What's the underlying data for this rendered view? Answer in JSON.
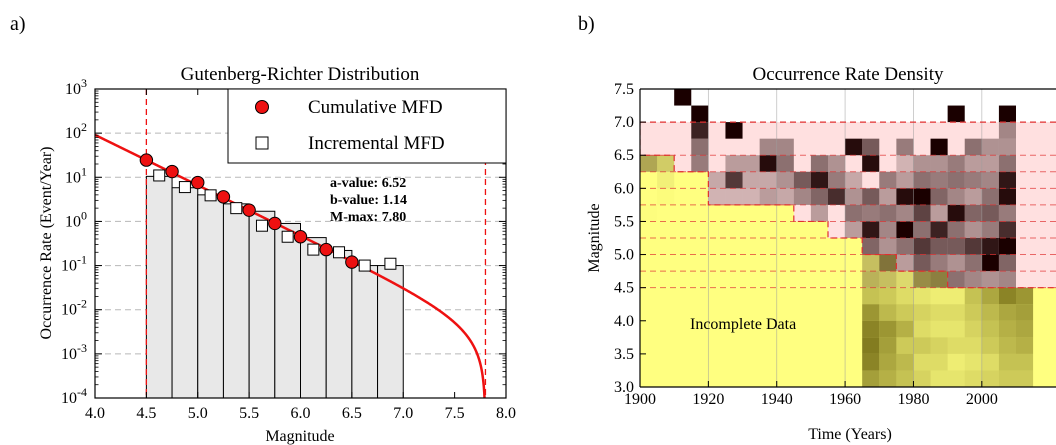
{
  "panels": {
    "a_label": "a)",
    "b_label": "b)"
  },
  "chart_data": [
    {
      "type": "bar",
      "title": "Gutenberg-Richter Distribution",
      "xlabel": "Magnitude",
      "ylabel": "Occurrence Rate (Event/Year)",
      "xlim": [
        4.0,
        8.0
      ],
      "ylim_log10": [
        -4,
        3
      ],
      "y_scale": "log",
      "x_ticks": [
        "4.0",
        "4.5",
        "5.0",
        "5.5",
        "6.0",
        "6.5",
        "7.0",
        "7.5",
        "8.0"
      ],
      "y_tick_exponents": [
        "3",
        "2",
        "1",
        "0",
        "-1",
        "-2",
        "-3",
        "-4"
      ],
      "grid": "horizontal dashed",
      "legend_position": "top-right",
      "bars": {
        "left_edges": [
          4.5,
          4.75,
          5.0,
          5.25,
          5.5,
          5.75,
          6.0,
          6.25,
          6.5,
          6.75
        ],
        "width": 0.25,
        "heights": [
          10.5,
          5.8,
          4.0,
          2.5,
          1.7,
          0.9,
          0.43,
          0.22,
          0.1,
          0.1
        ]
      },
      "series": [
        {
          "name": "Cumulative MFD",
          "marker": "red-circle",
          "x": [
            4.5,
            4.75,
            5.0,
            5.25,
            5.5,
            5.75,
            6.0,
            6.25,
            6.5
          ],
          "y": [
            24.5,
            13.5,
            7.6,
            3.6,
            1.8,
            0.9,
            0.45,
            0.23,
            0.12
          ]
        },
        {
          "name": "Incremental MFD",
          "marker": "white-square",
          "x": [
            4.625,
            4.875,
            5.125,
            5.375,
            5.625,
            5.875,
            6.125,
            6.375,
            6.625,
            6.875
          ],
          "y": [
            11.0,
            6.0,
            3.9,
            2.0,
            0.8,
            0.45,
            0.23,
            0.2,
            0.1,
            0.11
          ]
        }
      ],
      "fit_curve": {
        "a_value": 6.52,
        "b_value": 1.14,
        "m_max": 7.8,
        "color": "#ee1111"
      },
      "vertical_lines": [
        4.5,
        7.8
      ],
      "annotations": [
        "a-value: 6.52",
        "b-value: 1.14",
        "M-max: 7.80"
      ]
    },
    {
      "type": "heatmap",
      "title": "Occurrence Rate Density",
      "xlabel": "Time (Years)",
      "ylabel": "Magnitude",
      "xlim": [
        1900,
        2015
      ],
      "ylim": [
        3.0,
        7.5
      ],
      "x_ticks": [
        "1900",
        "1920",
        "1940",
        "1960",
        "1980",
        "2000"
      ],
      "y_ticks": [
        "3.0",
        "3.5",
        "4.0",
        "4.5",
        "5.0",
        "5.5",
        "6.0",
        "6.5",
        "7.0",
        "7.5"
      ],
      "annotation": "Incomplete Data",
      "grid": "vertical lines",
      "x_bin_start": 1900,
      "x_bin_width": 5,
      "y_bin_start": 3.0,
      "y_bin_width": 0.25,
      "completeness_edges_mag": [
        4.5,
        4.75,
        5.0,
        5.25,
        5.5,
        5.75,
        6.0,
        6.25,
        6.5,
        7.0
      ],
      "completeness_years": [
        1990,
        1975,
        1965,
        1955,
        1945,
        1920,
        1920,
        1910,
        1900,
        1900
      ],
      "incomplete_color": "#ffff80",
      "complete_color": "#ffe0e0",
      "cell_values_note": "values 0-1, darker = higher rate density",
      "cells": [
        {
          "year": 1965,
          "mag": 3.0,
          "v": 0.55
        },
        {
          "year": 1965,
          "mag": 3.25,
          "v": 0.7
        },
        {
          "year": 1965,
          "mag": 3.5,
          "v": 0.75
        },
        {
          "year": 1965,
          "mag": 3.75,
          "v": 0.7
        },
        {
          "year": 1965,
          "mag": 4.0,
          "v": 0.6
        },
        {
          "year": 1965,
          "mag": 4.25,
          "v": 0.35
        },
        {
          "year": 1965,
          "mag": 4.5,
          "v": 0.3
        },
        {
          "year": 1965,
          "mag": 4.75,
          "v": 0.25
        },
        {
          "year": 1970,
          "mag": 3.0,
          "v": 0.45
        },
        {
          "year": 1970,
          "mag": 3.25,
          "v": 0.5
        },
        {
          "year": 1970,
          "mag": 3.5,
          "v": 0.55
        },
        {
          "year": 1970,
          "mag": 3.75,
          "v": 0.6
        },
        {
          "year": 1970,
          "mag": 4.0,
          "v": 0.4
        },
        {
          "year": 1970,
          "mag": 4.25,
          "v": 0.3
        },
        {
          "year": 1970,
          "mag": 4.5,
          "v": 0.25
        },
        {
          "year": 1975,
          "mag": 3.0,
          "v": 0.35
        },
        {
          "year": 1975,
          "mag": 3.25,
          "v": 0.4
        },
        {
          "year": 1975,
          "mag": 3.5,
          "v": 0.3
        },
        {
          "year": 1975,
          "mag": 3.75,
          "v": 0.45
        },
        {
          "year": 1975,
          "mag": 4.0,
          "v": 0.3
        },
        {
          "year": 1975,
          "mag": 4.25,
          "v": 0.2
        },
        {
          "year": 1975,
          "mag": 4.5,
          "v": 0.15
        },
        {
          "year": 1980,
          "mag": 3.0,
          "v": 0.25
        },
        {
          "year": 1980,
          "mag": 3.25,
          "v": 0.2
        },
        {
          "year": 1980,
          "mag": 3.5,
          "v": 0.3
        },
        {
          "year": 1980,
          "mag": 3.75,
          "v": 0.2
        },
        {
          "year": 1980,
          "mag": 4.0,
          "v": 0.25
        },
        {
          "year": 1980,
          "mag": 4.25,
          "v": 0.15
        },
        {
          "year": 1985,
          "mag": 3.0,
          "v": 0.15
        },
        {
          "year": 1985,
          "mag": 3.25,
          "v": 0.2
        },
        {
          "year": 1985,
          "mag": 3.5,
          "v": 0.25
        },
        {
          "year": 1985,
          "mag": 3.75,
          "v": 0.15
        },
        {
          "year": 1985,
          "mag": 4.0,
          "v": 0.2
        },
        {
          "year": 1985,
          "mag": 4.25,
          "v": 0.1
        },
        {
          "year": 1990,
          "mag": 3.0,
          "v": 0.15
        },
        {
          "year": 1990,
          "mag": 3.25,
          "v": 0.1
        },
        {
          "year": 1990,
          "mag": 3.5,
          "v": 0.2
        },
        {
          "year": 1990,
          "mag": 3.75,
          "v": 0.15
        },
        {
          "year": 1990,
          "mag": 4.0,
          "v": 0.2
        },
        {
          "year": 1990,
          "mag": 4.25,
          "v": 0.1
        },
        {
          "year": 1995,
          "mag": 3.0,
          "v": 0.2
        },
        {
          "year": 1995,
          "mag": 3.25,
          "v": 0.15
        },
        {
          "year": 1995,
          "mag": 3.5,
          "v": 0.2
        },
        {
          "year": 1995,
          "mag": 3.75,
          "v": 0.25
        },
        {
          "year": 1995,
          "mag": 4.0,
          "v": 0.3
        },
        {
          "year": 1995,
          "mag": 4.25,
          "v": 0.35
        },
        {
          "year": 2000,
          "mag": 3.0,
          "v": 0.25
        },
        {
          "year": 2000,
          "mag": 3.25,
          "v": 0.2
        },
        {
          "year": 2000,
          "mag": 3.5,
          "v": 0.3
        },
        {
          "year": 2000,
          "mag": 3.75,
          "v": 0.35
        },
        {
          "year": 2000,
          "mag": 4.0,
          "v": 0.4
        },
        {
          "year": 2000,
          "mag": 4.25,
          "v": 0.5
        },
        {
          "year": 2005,
          "mag": 3.0,
          "v": 0.3
        },
        {
          "year": 2005,
          "mag": 3.25,
          "v": 0.35
        },
        {
          "year": 2005,
          "mag": 3.5,
          "v": 0.4
        },
        {
          "year": 2005,
          "mag": 3.75,
          "v": 0.45
        },
        {
          "year": 2005,
          "mag": 4.0,
          "v": 0.5
        },
        {
          "year": 2005,
          "mag": 4.25,
          "v": 0.7
        },
        {
          "year": 2010,
          "mag": 3.0,
          "v": 0.3
        },
        {
          "year": 2010,
          "mag": 3.25,
          "v": 0.35
        },
        {
          "year": 2010,
          "mag": 3.5,
          "v": 0.45
        },
        {
          "year": 2010,
          "mag": 3.75,
          "v": 0.5
        },
        {
          "year": 2010,
          "mag": 4.0,
          "v": 0.55
        },
        {
          "year": 2010,
          "mag": 4.25,
          "v": 0.6
        },
        {
          "year": 1905,
          "mag": 6.0,
          "v": 0.06
        },
        {
          "year": 1905,
          "mag": 5.75,
          "v": 0.05
        },
        {
          "year": 1900,
          "mag": 5.5,
          "v": 0.03
        },
        {
          "year": 1965,
          "mag": 5.0,
          "v": 0.55
        },
        {
          "year": 1965,
          "mag": 5.25,
          "v": 0.9
        },
        {
          "year": 1965,
          "mag": 5.5,
          "v": 0.45
        },
        {
          "year": 1965,
          "mag": 5.75,
          "v": 0.6
        },
        {
          "year": 1965,
          "mag": 6.25,
          "v": 0.95
        },
        {
          "year": 1965,
          "mag": 6.5,
          "v": 0.6
        },
        {
          "year": 1970,
          "mag": 4.75,
          "v": 0.55
        },
        {
          "year": 1970,
          "mag": 5.0,
          "v": 0.35
        },
        {
          "year": 1970,
          "mag": 5.25,
          "v": 0.4
        },
        {
          "year": 1970,
          "mag": 5.5,
          "v": 0.5
        },
        {
          "year": 1970,
          "mag": 5.75,
          "v": 0.3
        },
        {
          "year": 1970,
          "mag": 6.0,
          "v": 0.45
        },
        {
          "year": 1975,
          "mag": 4.75,
          "v": 0.3
        },
        {
          "year": 1975,
          "mag": 5.0,
          "v": 0.5
        },
        {
          "year": 1975,
          "mag": 5.25,
          "v": 1.0
        },
        {
          "year": 1975,
          "mag": 5.5,
          "v": 0.4
        },
        {
          "year": 1975,
          "mag": 5.75,
          "v": 0.95
        },
        {
          "year": 1975,
          "mag": 6.0,
          "v": 0.3
        },
        {
          "year": 1975,
          "mag": 6.25,
          "v": 0.2
        },
        {
          "year": 1975,
          "mag": 6.5,
          "v": 0.45
        },
        {
          "year": 1980,
          "mag": 4.5,
          "v": 0.45
        },
        {
          "year": 1980,
          "mag": 4.75,
          "v": 0.6
        },
        {
          "year": 1980,
          "mag": 5.0,
          "v": 0.75
        },
        {
          "year": 1980,
          "mag": 5.25,
          "v": 0.5
        },
        {
          "year": 1980,
          "mag": 5.5,
          "v": 0.7
        },
        {
          "year": 1980,
          "mag": 5.75,
          "v": 1.0
        },
        {
          "year": 1980,
          "mag": 6.0,
          "v": 0.5
        },
        {
          "year": 1980,
          "mag": 6.25,
          "v": 0.35
        },
        {
          "year": 1985,
          "mag": 4.5,
          "v": 0.5
        },
        {
          "year": 1985,
          "mag": 4.75,
          "v": 0.45
        },
        {
          "year": 1985,
          "mag": 5.0,
          "v": 0.6
        },
        {
          "year": 1985,
          "mag": 5.25,
          "v": 0.85
        },
        {
          "year": 1985,
          "mag": 5.5,
          "v": 0.3
        },
        {
          "year": 1985,
          "mag": 5.75,
          "v": 0.55
        },
        {
          "year": 1985,
          "mag": 6.0,
          "v": 0.45
        },
        {
          "year": 1985,
          "mag": 6.25,
          "v": 0.35
        },
        {
          "year": 1985,
          "mag": 6.5,
          "v": 1.0
        },
        {
          "year": 1990,
          "mag": 4.5,
          "v": 0.5
        },
        {
          "year": 1990,
          "mag": 4.75,
          "v": 0.35
        },
        {
          "year": 1990,
          "mag": 5.0,
          "v": 0.6
        },
        {
          "year": 1990,
          "mag": 5.25,
          "v": 0.5
        },
        {
          "year": 1990,
          "mag": 5.5,
          "v": 0.95
        },
        {
          "year": 1990,
          "mag": 5.75,
          "v": 0.4
        },
        {
          "year": 1990,
          "mag": 6.0,
          "v": 0.5
        },
        {
          "year": 1990,
          "mag": 6.25,
          "v": 0.45
        },
        {
          "year": 1990,
          "mag": 7.0,
          "v": 1.0
        },
        {
          "year": 1995,
          "mag": 4.5,
          "v": 0.4
        },
        {
          "year": 1995,
          "mag": 4.75,
          "v": 0.5
        },
        {
          "year": 1995,
          "mag": 5.0,
          "v": 0.75
        },
        {
          "year": 1995,
          "mag": 5.25,
          "v": 0.35
        },
        {
          "year": 1995,
          "mag": 5.5,
          "v": 0.55
        },
        {
          "year": 1995,
          "mag": 5.75,
          "v": 0.3
        },
        {
          "year": 1995,
          "mag": 6.0,
          "v": 0.45
        },
        {
          "year": 1995,
          "mag": 6.25,
          "v": 0.3
        },
        {
          "year": 1995,
          "mag": 6.5,
          "v": 0.5
        },
        {
          "year": 2000,
          "mag": 4.5,
          "v": 0.35
        },
        {
          "year": 2000,
          "mag": 4.75,
          "v": 1.0
        },
        {
          "year": 2000,
          "mag": 5.0,
          "v": 0.9
        },
        {
          "year": 2000,
          "mag": 5.25,
          "v": 0.45
        },
        {
          "year": 2000,
          "mag": 5.5,
          "v": 0.6
        },
        {
          "year": 2000,
          "mag": 5.75,
          "v": 0.5
        },
        {
          "year": 2000,
          "mag": 6.0,
          "v": 0.4
        },
        {
          "year": 2000,
          "mag": 6.25,
          "v": 0.3
        },
        {
          "year": 2000,
          "mag": 6.5,
          "v": 0.35
        },
        {
          "year": 2005,
          "mag": 4.5,
          "v": 0.4
        },
        {
          "year": 2005,
          "mag": 4.75,
          "v": 0.55
        },
        {
          "year": 2005,
          "mag": 5.0,
          "v": 1.0
        },
        {
          "year": 2005,
          "mag": 5.25,
          "v": 0.8
        },
        {
          "year": 2005,
          "mag": 5.5,
          "v": 0.45
        },
        {
          "year": 2005,
          "mag": 5.75,
          "v": 0.95
        },
        {
          "year": 2005,
          "mag": 6.0,
          "v": 0.9
        },
        {
          "year": 2005,
          "mag": 6.25,
          "v": 0.5
        },
        {
          "year": 2005,
          "mag": 6.5,
          "v": 0.35
        },
        {
          "year": 2005,
          "mag": 6.75,
          "v": 0.4
        },
        {
          "year": 2005,
          "mag": 7.0,
          "v": 1.0
        },
        {
          "year": 1945,
          "mag": 5.75,
          "v": 0.4
        },
        {
          "year": 1945,
          "mag": 6.0,
          "v": 0.6
        },
        {
          "year": 1950,
          "mag": 5.5,
          "v": 0.3
        },
        {
          "year": 1950,
          "mag": 5.75,
          "v": 0.55
        },
        {
          "year": 1950,
          "mag": 6.0,
          "v": 0.9
        },
        {
          "year": 1950,
          "mag": 6.25,
          "v": 0.5
        },
        {
          "year": 1955,
          "mag": 5.75,
          "v": 0.8
        },
        {
          "year": 1955,
          "mag": 6.0,
          "v": 0.45
        },
        {
          "year": 1955,
          "mag": 6.25,
          "v": 0.35
        },
        {
          "year": 1960,
          "mag": 5.25,
          "v": 0.3
        },
        {
          "year": 1960,
          "mag": 5.5,
          "v": 0.5
        },
        {
          "year": 1960,
          "mag": 5.75,
          "v": 0.35
        },
        {
          "year": 1960,
          "mag": 6.0,
          "v": 0.25
        },
        {
          "year": 1960,
          "mag": 6.5,
          "v": 0.95
        },
        {
          "year": 1935,
          "mag": 5.75,
          "v": 0.3
        },
        {
          "year": 1935,
          "mag": 6.0,
          "v": 0.25
        },
        {
          "year": 1935,
          "mag": 6.25,
          "v": 0.95
        },
        {
          "year": 1935,
          "mag": 6.5,
          "v": 0.4
        },
        {
          "year": 1940,
          "mag": 5.75,
          "v": 0.25
        },
        {
          "year": 1940,
          "mag": 6.0,
          "v": 0.35
        },
        {
          "year": 1940,
          "mag": 6.25,
          "v": 0.5
        },
        {
          "year": 1940,
          "mag": 6.5,
          "v": 0.4
        },
        {
          "year": 1925,
          "mag": 5.75,
          "v": 0.2
        },
        {
          "year": 1925,
          "mag": 6.0,
          "v": 0.75
        },
        {
          "year": 1925,
          "mag": 6.25,
          "v": 0.3
        },
        {
          "year": 1930,
          "mag": 5.75,
          "v": 0.2
        },
        {
          "year": 1930,
          "mag": 6.0,
          "v": 0.25
        },
        {
          "year": 1930,
          "mag": 6.25,
          "v": 0.3
        },
        {
          "year": 1920,
          "mag": 5.75,
          "v": 0.2
        },
        {
          "year": 1920,
          "mag": 6.0,
          "v": 0.25
        },
        {
          "year": 1915,
          "mag": 6.25,
          "v": 0.45
        },
        {
          "year": 1915,
          "mag": 6.5,
          "v": 0.5
        },
        {
          "year": 1915,
          "mag": 6.75,
          "v": 0.85
        },
        {
          "year": 1915,
          "mag": 7.0,
          "v": 1.0
        },
        {
          "year": 1910,
          "mag": 7.25,
          "v": 1.0
        },
        {
          "year": 1925,
          "mag": 6.75,
          "v": 1.0
        },
        {
          "year": 1900,
          "mag": 6.25,
          "v": 0.35
        },
        {
          "year": 1905,
          "mag": 6.25,
          "v": 0.2
        }
      ]
    }
  ]
}
